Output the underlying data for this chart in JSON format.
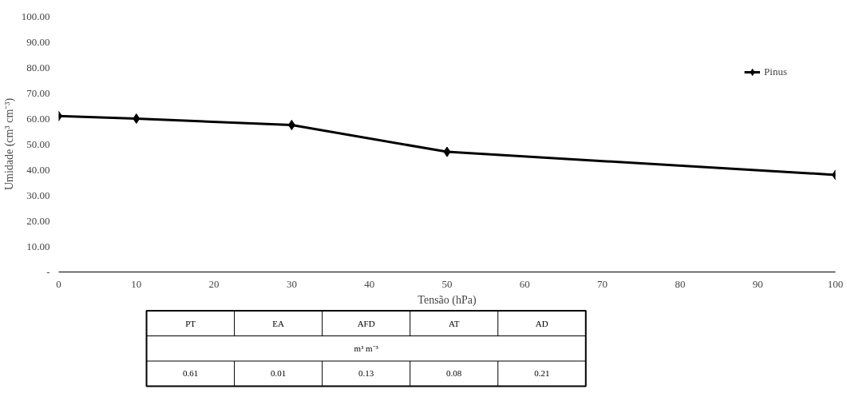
{
  "chart_data": [
    {
      "type": "line",
      "xlabel": "Tensão (hPa)",
      "ylabel": "Umidade (cm³ cm⁻³)",
      "x": [
        0,
        10,
        30,
        50,
        100
      ],
      "series": [
        {
          "name": "Pinus",
          "color": "#000000",
          "values": [
            61,
            60,
            57.5,
            47,
            38
          ]
        }
      ],
      "xlim": [
        0,
        100
      ],
      "xticks": [
        0,
        10,
        20,
        30,
        40,
        50,
        60,
        70,
        80,
        90,
        100
      ],
      "ylim": [
        0,
        100
      ],
      "yticks": [
        {
          "value": 0,
          "label": "-"
        },
        {
          "value": 10,
          "label": "10.00"
        },
        {
          "value": 20,
          "label": "20.00"
        },
        {
          "value": 30,
          "label": "30.00"
        },
        {
          "value": 40,
          "label": "40.00"
        },
        {
          "value": 50,
          "label": "50.00"
        },
        {
          "value": 60,
          "label": "60.00"
        },
        {
          "value": 70,
          "label": "70.00"
        },
        {
          "value": 80,
          "label": "80.00"
        },
        {
          "value": 90,
          "label": "90.00"
        },
        {
          "value": 100,
          "label": "100.00"
        }
      ],
      "grid": false,
      "legend": "top right",
      "marker": "diamond",
      "line_style": "solid"
    },
    {
      "type": "other",
      "categories": [
        "PT",
        "EA",
        "AFD",
        "AT",
        "AD"
      ],
      "subtitle": "m³ m⁻³",
      "values": [
        0.61,
        0.01,
        0.13,
        0.08,
        0.21
      ],
      "data_labels": true
    }
  ]
}
